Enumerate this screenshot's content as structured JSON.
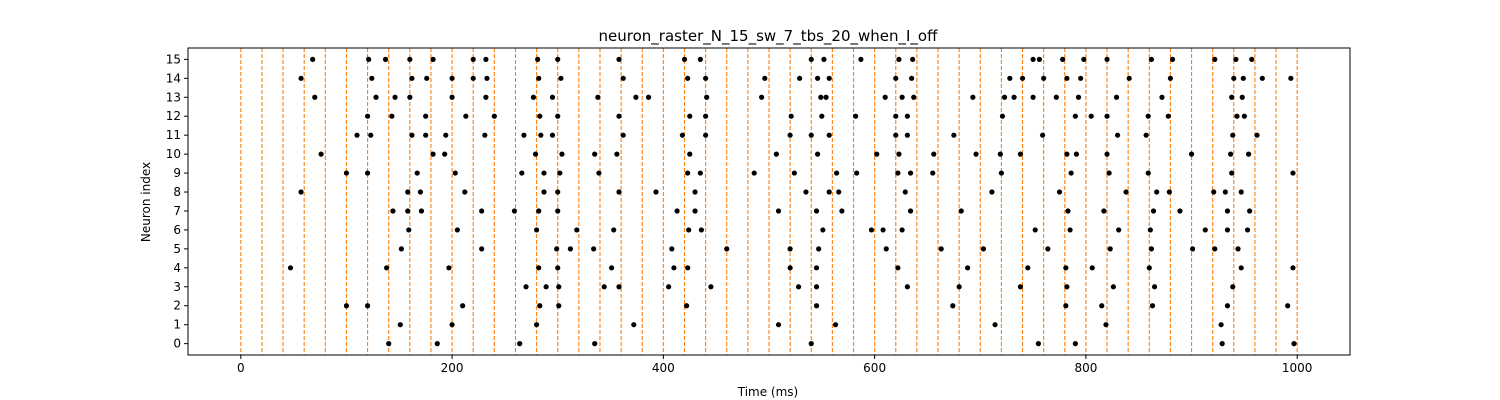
{
  "chart_data": {
    "type": "scatter",
    "title": "neuron_raster_N_15_sw_7_tbs_20_when_I_off",
    "xlabel": "Time (ms)",
    "ylabel": "Neuron index",
    "xlim": [
      -50,
      1050
    ],
    "ylim": [
      -0.6,
      15.6
    ],
    "x_ticks": [
      0,
      200,
      400,
      600,
      800,
      1000
    ],
    "y_ticks": [
      0,
      1,
      2,
      3,
      4,
      5,
      6,
      7,
      8,
      9,
      10,
      11,
      12,
      13,
      14,
      15
    ],
    "grid": false,
    "legend": "none",
    "marker_color": "#000000",
    "vline_color": "#ff7f0e",
    "vlines_x": [
      0,
      20,
      40,
      60,
      80,
      100,
      120,
      140,
      160,
      180,
      200,
      220,
      240,
      260,
      280,
      300,
      320,
      340,
      360,
      380,
      400,
      420,
      440,
      460,
      480,
      500,
      520,
      540,
      560,
      580,
      600,
      620,
      640,
      660,
      680,
      700,
      720,
      740,
      760,
      780,
      800,
      820,
      840,
      860,
      880,
      900,
      920,
      940,
      960,
      980,
      1000
    ],
    "series": [
      {
        "neuron": 15,
        "times": [
          68,
          121,
          137,
          160,
          182,
          220,
          232,
          281,
          300,
          358,
          420,
          435,
          540,
          552,
          587,
          623,
          636,
          750,
          756,
          778,
          798,
          820,
          862,
          882,
          922,
          942,
          957
        ]
      },
      {
        "neuron": 14,
        "times": [
          57,
          124,
          162,
          176,
          200,
          220,
          233,
          282,
          303,
          362,
          423,
          440,
          496,
          529,
          546,
          557,
          620,
          635,
          728,
          740,
          760,
          782,
          795,
          841,
          880,
          940,
          949,
          967,
          994
        ]
      },
      {
        "neuron": 13,
        "times": [
          70,
          128,
          146,
          160,
          200,
          232,
          277,
          295,
          338,
          374,
          386,
          441,
          493,
          549,
          554,
          610,
          626,
          637,
          693,
          723,
          732,
          750,
          772,
          793,
          829,
          872,
          938,
          948
        ]
      },
      {
        "neuron": 12,
        "times": [
          120,
          143,
          175,
          213,
          240,
          283,
          300,
          358,
          425,
          440,
          521,
          550,
          582,
          620,
          631,
          721,
          790,
          805,
          820,
          859,
          878,
          943,
          950
        ]
      },
      {
        "neuron": 11,
        "times": [
          110,
          123,
          162,
          175,
          194,
          231,
          268,
          284,
          295,
          362,
          418,
          440,
          520,
          540,
          557,
          620,
          631,
          675,
          759,
          830,
          857,
          939,
          962
        ]
      },
      {
        "neuron": 10,
        "times": [
          76,
          182,
          193,
          279,
          304,
          335,
          356,
          425,
          507,
          546,
          602,
          623,
          656,
          696,
          719,
          738,
          782,
          791,
          820,
          900,
          937,
          954
        ]
      },
      {
        "neuron": 9,
        "times": [
          100,
          120,
          167,
          203,
          266,
          287,
          302,
          339,
          423,
          435,
          486,
          524,
          564,
          583,
          622,
          634,
          655,
          720,
          786,
          822,
          859,
          938,
          996
        ]
      },
      {
        "neuron": 8,
        "times": [
          57,
          158,
          170,
          212,
          287,
          300,
          358,
          393,
          430,
          535,
          557,
          566,
          629,
          711,
          775,
          838,
          867,
          879,
          921,
          932,
          947
        ]
      },
      {
        "neuron": 7,
        "times": [
          144,
          158,
          171,
          228,
          259,
          282,
          300,
          413,
          430,
          509,
          545,
          569,
          634,
          682,
          783,
          817,
          864,
          889,
          934,
          955
        ]
      },
      {
        "neuron": 6,
        "times": [
          159,
          205,
          280,
          318,
          353,
          424,
          436,
          551,
          597,
          608,
          626,
          752,
          785,
          831,
          861,
          913,
          934,
          953
        ]
      },
      {
        "neuron": 5,
        "times": [
          152,
          228,
          299,
          312,
          334,
          408,
          460,
          520,
          547,
          611,
          663,
          703,
          764,
          823,
          862,
          901,
          922,
          944
        ]
      },
      {
        "neuron": 4,
        "times": [
          47,
          138,
          197,
          282,
          300,
          351,
          410,
          423,
          520,
          545,
          622,
          688,
          745,
          781,
          806,
          860,
          947,
          996
        ]
      },
      {
        "neuron": 3,
        "times": [
          270,
          289,
          301,
          344,
          358,
          405,
          445,
          528,
          545,
          631,
          680,
          738,
          782,
          826,
          865,
          939
        ]
      },
      {
        "neuron": 2,
        "times": [
          100,
          120,
          210,
          283,
          301,
          422,
          545,
          674,
          781,
          815,
          863,
          934,
          991
        ]
      },
      {
        "neuron": 1,
        "times": [
          151,
          200,
          280,
          372,
          509,
          563,
          714,
          819,
          928
        ]
      },
      {
        "neuron": 0,
        "times": [
          140,
          186,
          264,
          335,
          540,
          755,
          790,
          929,
          997
        ]
      }
    ]
  }
}
